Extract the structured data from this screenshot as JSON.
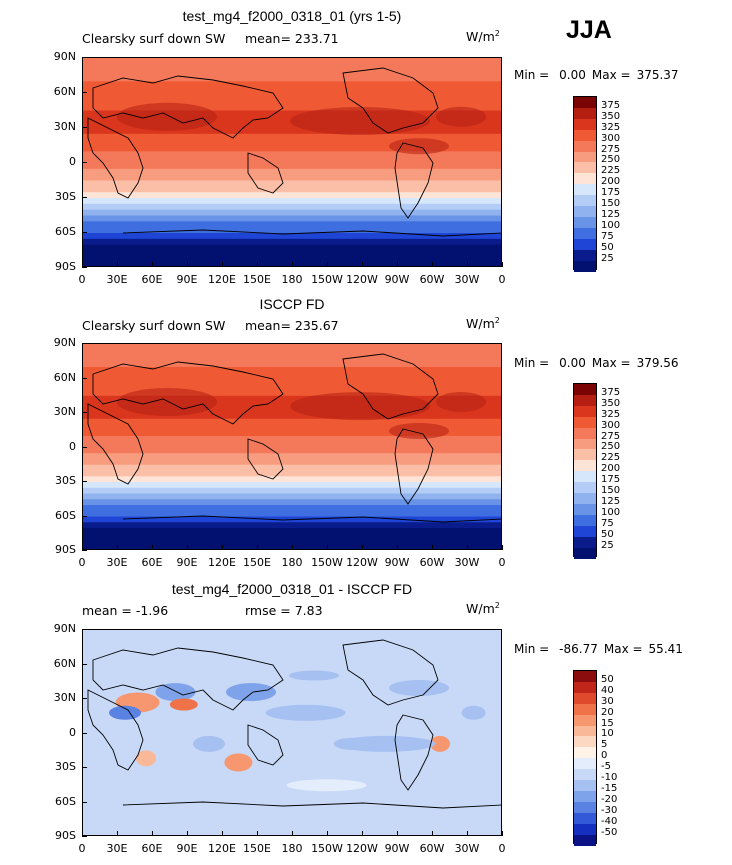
{
  "season": "JJA",
  "panels": [
    {
      "title": "test_mg4_f2000_0318_01 (yrs 1-5)",
      "field": "Clearsky surf down SW",
      "stat": "mean= 233.71",
      "units": "W/m",
      "units_sup": "2",
      "min_label": "Min =",
      "min_value": "0.00",
      "max_label": "Max =",
      "max_value": "375.37",
      "colorbar": [
        "375",
        "350",
        "325",
        "300",
        "275",
        "250",
        "225",
        "200",
        "175",
        "150",
        "125",
        "100",
        "75",
        "50",
        "25"
      ],
      "colors": [
        "#7a0403",
        "#b51f12",
        "#d9361d",
        "#ef5a34",
        "#f4795a",
        "#f89c80",
        "#fbbfa7",
        "#fde4d6",
        "#d6e6fb",
        "#b4cdf6",
        "#90b2ef",
        "#6893e6",
        "#3f6ee0",
        "#1f45d6",
        "#0a1c8c",
        "#021070"
      ]
    },
    {
      "title": "ISCCP FD",
      "field": "Clearsky surf down SW",
      "stat": "mean= 235.67",
      "units": "W/m",
      "units_sup": "2",
      "min_label": "Min =",
      "min_value": "0.00",
      "max_label": "Max =",
      "max_value": "379.56",
      "colorbar": [
        "375",
        "350",
        "325",
        "300",
        "275",
        "250",
        "225",
        "200",
        "175",
        "150",
        "125",
        "100",
        "75",
        "50",
        "25"
      ],
      "colors": [
        "#7a0403",
        "#b51f12",
        "#d9361d",
        "#ef5a34",
        "#f4795a",
        "#f89c80",
        "#fbbfa7",
        "#fde4d6",
        "#d6e6fb",
        "#b4cdf6",
        "#90b2ef",
        "#6893e6",
        "#3f6ee0",
        "#1f45d6",
        "#0a1c8c",
        "#021070"
      ]
    },
    {
      "title": "test_mg4_f2000_0318_01 - ISCCP FD",
      "field": "mean =   -1.96",
      "stat": "rmse =    7.83",
      "units": "W/m",
      "units_sup": "2",
      "min_label": "Min =",
      "min_value": "-86.77",
      "max_label": "Max =",
      "max_value": "55.41",
      "colorbar": [
        "50",
        "40",
        "30",
        "20",
        "15",
        "10",
        "5",
        "0",
        "-5",
        "-10",
        "-15",
        "-20",
        "-30",
        "-40",
        "-50"
      ],
      "colors": [
        "#8c0d0d",
        "#c0271a",
        "#e04a2c",
        "#f07248",
        "#f6976f",
        "#f9b898",
        "#fcd8c2",
        "#fff2e6",
        "#e4edfb",
        "#c8d9f7",
        "#a6c1f1",
        "#7fa3ea",
        "#5a82e2",
        "#3359d9",
        "#1530c0",
        "#0a1285"
      ]
    }
  ],
  "lat_ticks": [
    "90N",
    "60N",
    "30N",
    "0",
    "30S",
    "60S",
    "90S"
  ],
  "lon_ticks": [
    "0",
    "30E",
    "60E",
    "90E",
    "120E",
    "150E",
    "180",
    "150W",
    "120W",
    "90W",
    "60W",
    "30W",
    "0"
  ]
}
